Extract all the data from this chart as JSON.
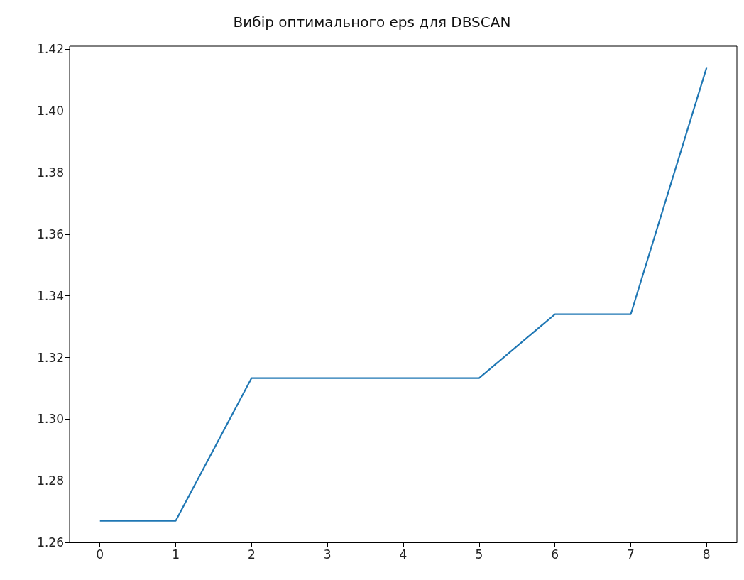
{
  "chart_data": {
    "type": "line",
    "title": "Вибір оптимального eps для DBSCAN",
    "x": [
      0,
      1,
      2,
      3,
      4,
      5,
      6,
      7,
      8
    ],
    "series": [
      {
        "color": "#1f77b4",
        "values": [
          1.267,
          1.267,
          1.3133,
          1.3133,
          1.3133,
          1.3133,
          1.334,
          1.334,
          1.414
        ]
      }
    ],
    "xlim": [
      -0.4,
      8.4
    ],
    "xticks": [
      0,
      1,
      2,
      3,
      4,
      5,
      6,
      7,
      8
    ],
    "ylim": [
      1.26,
      1.421
    ],
    "yticks": [
      1.26,
      1.28,
      {
        "value": 1.3,
        "label": "1.30"
      },
      1.32,
      1.34,
      1.36,
      1.38,
      {
        "value": 1.4,
        "label": "1.40"
      },
      1.42
    ],
    "grid": false,
    "marker": "none",
    "line_style": "solid"
  }
}
